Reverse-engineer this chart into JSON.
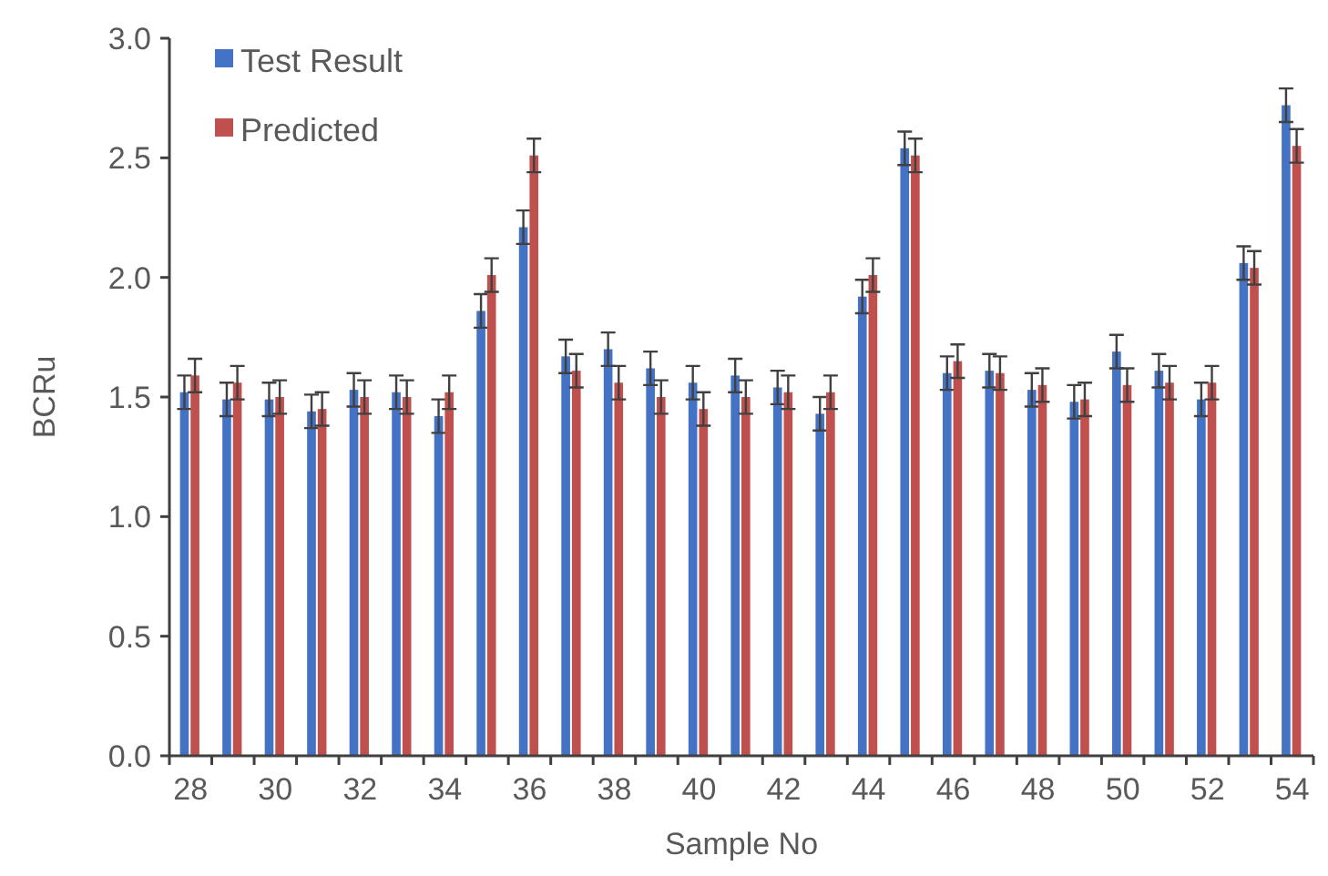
{
  "chart_data": {
    "type": "bar",
    "xlabel": "Sample No",
    "ylabel": "BCRu",
    "categories": [
      "28",
      null,
      "30",
      null,
      "32",
      null,
      "34",
      null,
      "36",
      null,
      "38",
      null,
      "40",
      null,
      "42",
      null,
      "44",
      null,
      "46",
      null,
      "48",
      null,
      "50",
      null,
      "52",
      null,
      "54"
    ],
    "series": [
      {
        "name": "Test Result",
        "color": "#4472c4",
        "values": [
          1.52,
          1.49,
          1.49,
          1.44,
          1.53,
          1.52,
          1.42,
          1.86,
          2.21,
          1.67,
          1.7,
          1.62,
          1.56,
          1.59,
          1.54,
          1.43,
          1.92,
          2.54,
          1.6,
          1.61,
          1.53,
          1.48,
          1.69,
          1.61,
          1.49,
          2.06,
          2.72
        ],
        "errors": [
          0.07,
          0.07,
          0.07,
          0.07,
          0.07,
          0.07,
          0.07,
          0.07,
          0.07,
          0.07,
          0.07,
          0.07,
          0.07,
          0.07,
          0.07,
          0.07,
          0.07,
          0.07,
          0.07,
          0.07,
          0.07,
          0.07,
          0.07,
          0.07,
          0.07,
          0.07,
          0.07
        ]
      },
      {
        "name": "Predicted",
        "color": "#c0504d",
        "values": [
          1.59,
          1.56,
          1.5,
          1.45,
          1.5,
          1.5,
          1.52,
          2.01,
          2.51,
          1.61,
          1.56,
          1.5,
          1.45,
          1.5,
          1.52,
          1.52,
          2.01,
          2.51,
          1.65,
          1.6,
          1.55,
          1.49,
          1.55,
          1.56,
          1.56,
          2.04,
          2.55
        ],
        "errors": [
          0.07,
          0.07,
          0.07,
          0.07,
          0.07,
          0.07,
          0.07,
          0.07,
          0.07,
          0.07,
          0.07,
          0.07,
          0.07,
          0.07,
          0.07,
          0.07,
          0.07,
          0.07,
          0.07,
          0.07,
          0.07,
          0.07,
          0.07,
          0.07,
          0.07,
          0.07,
          0.07
        ]
      }
    ],
    "ylim": [
      0,
      3
    ],
    "yticks": [
      {
        "value": 0,
        "label": "0.0"
      },
      {
        "value": 0.5,
        "label": "0.5"
      },
      {
        "value": 1,
        "label": "1.0"
      },
      {
        "value": 1.5,
        "label": "1.5"
      },
      {
        "value": 2,
        "label": "2.0"
      },
      {
        "value": 2.5,
        "label": "2.5"
      },
      {
        "value": 3,
        "label": "3.0"
      }
    ],
    "legend": "top left",
    "grid": false
  }
}
